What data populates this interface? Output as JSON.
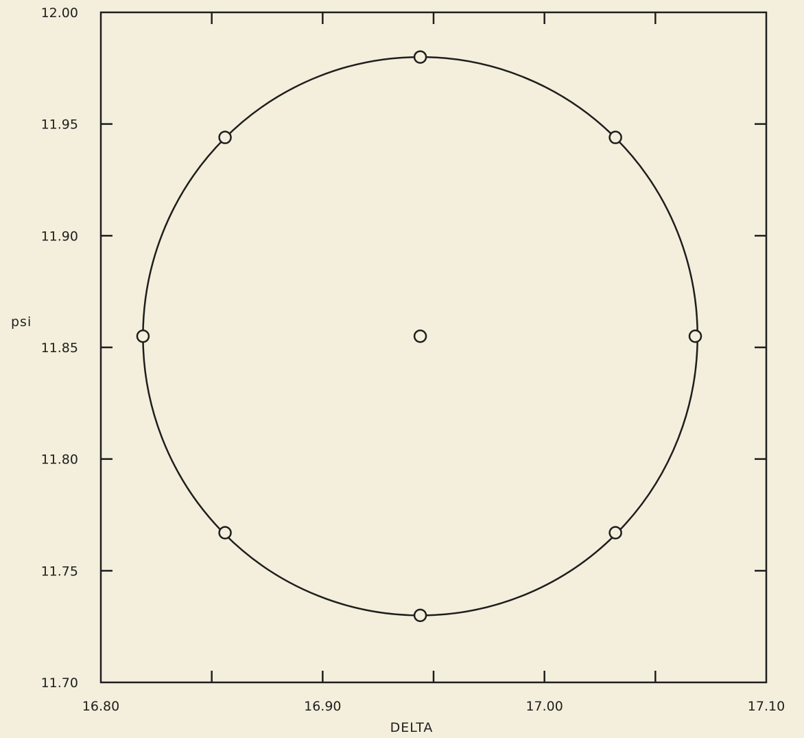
{
  "chart_data": {
    "type": "scatter",
    "title": "",
    "xlabel": "DELTA",
    "ylabel": "psi",
    "xlim": [
      16.8,
      17.1
    ],
    "ylim": [
      11.7,
      12.0
    ],
    "grid": false,
    "x_ticks": [
      16.8,
      16.85,
      16.9,
      16.95,
      17.0,
      17.05,
      17.1
    ],
    "x_tick_labels": [
      "16.80",
      "",
      "16.90",
      "",
      "17.00",
      "",
      "17.10"
    ],
    "y_ticks": [
      11.7,
      11.75,
      11.8,
      11.85,
      11.9,
      11.95,
      12.0
    ],
    "y_tick_labels": [
      "11.70",
      "11.75",
      "11.80",
      "11.85",
      "11.90",
      "11.95",
      "12.00"
    ],
    "points": [
      {
        "x": 16.944,
        "y": 11.98
      },
      {
        "x": 17.032,
        "y": 11.944
      },
      {
        "x": 17.068,
        "y": 11.855
      },
      {
        "x": 17.032,
        "y": 11.767
      },
      {
        "x": 16.944,
        "y": 11.73
      },
      {
        "x": 16.856,
        "y": 11.767
      },
      {
        "x": 16.819,
        "y": 11.855
      },
      {
        "x": 16.856,
        "y": 11.944
      },
      {
        "x": 16.944,
        "y": 11.855
      }
    ],
    "curve": {
      "shape": "circle",
      "center": {
        "x": 16.944,
        "y": 11.855
      },
      "rx": 0.125,
      "ry": 0.125
    }
  }
}
